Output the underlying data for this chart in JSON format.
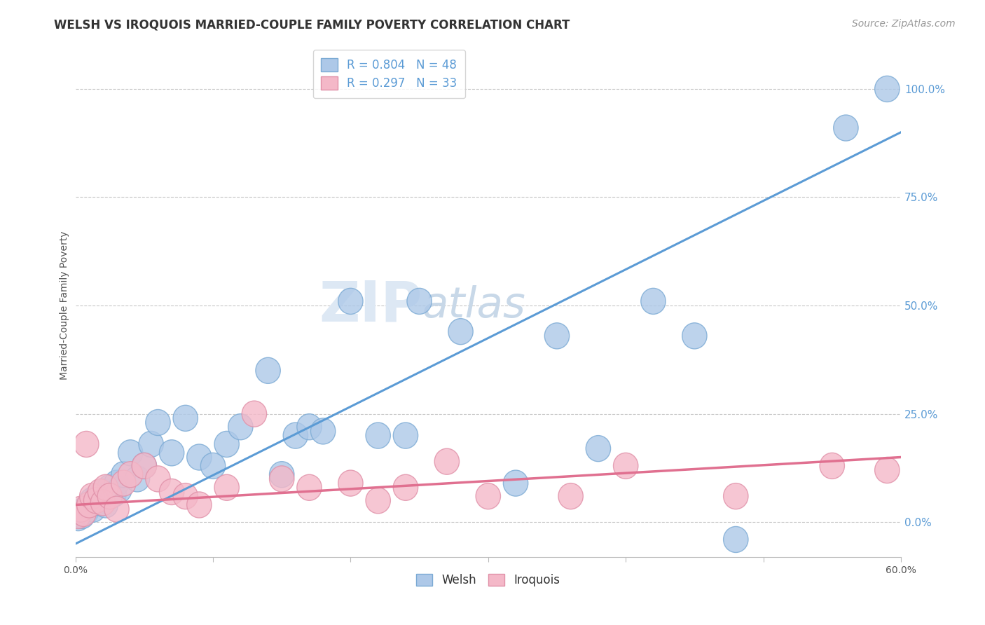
{
  "title": "WELSH VS IROQUOIS MARRIED-COUPLE FAMILY POVERTY CORRELATION CHART",
  "source": "Source: ZipAtlas.com",
  "ylabel": "Married-Couple Family Poverty",
  "ytick_values": [
    0.0,
    25.0,
    50.0,
    75.0,
    100.0
  ],
  "xlim": [
    0.0,
    60.0
  ],
  "ylim": [
    -8.0,
    108.0
  ],
  "welsh_R": 0.804,
  "welsh_N": 48,
  "iroquois_R": 0.297,
  "iroquois_N": 33,
  "welsh_color": "#adc8e8",
  "welsh_edge_color": "#7baad4",
  "welsh_line_color": "#5b9bd5",
  "iroquois_color": "#f4b8c8",
  "iroquois_edge_color": "#e090a8",
  "iroquois_line_color": "#e07090",
  "watermark_color": "#dde8f4",
  "background_color": "#ffffff",
  "grid_color": "#c8c8c8",
  "title_fontsize": 12,
  "source_fontsize": 10,
  "axis_label_fontsize": 10,
  "legend_fontsize": 12,
  "welsh_scatter_x": [
    0.2,
    0.3,
    0.5,
    0.7,
    0.8,
    1.0,
    1.0,
    1.2,
    1.3,
    1.5,
    1.6,
    1.8,
    2.0,
    2.2,
    2.5,
    2.8,
    3.0,
    3.2,
    3.5,
    4.0,
    4.5,
    5.0,
    5.5,
    6.0,
    7.0,
    8.0,
    9.0,
    10.0,
    11.0,
    12.0,
    14.0,
    15.0,
    16.0,
    17.0,
    18.0,
    20.0,
    22.0,
    24.0,
    25.0,
    28.0,
    32.0,
    35.0,
    38.0,
    42.0,
    45.0,
    48.0,
    56.0,
    59.0
  ],
  "welsh_scatter_y": [
    1.0,
    2.0,
    1.5,
    3.0,
    2.5,
    4.0,
    3.5,
    5.0,
    3.0,
    4.5,
    6.0,
    5.5,
    7.0,
    4.0,
    8.0,
    6.5,
    9.0,
    7.5,
    11.0,
    16.0,
    10.0,
    13.0,
    18.0,
    23.0,
    16.0,
    24.0,
    15.0,
    13.0,
    18.0,
    22.0,
    35.0,
    11.0,
    20.0,
    22.0,
    21.0,
    51.0,
    20.0,
    20.0,
    51.0,
    44.0,
    9.0,
    43.0,
    17.0,
    51.0,
    43.0,
    -4.0,
    91.0,
    100.0
  ],
  "iroquois_scatter_x": [
    0.2,
    0.4,
    0.6,
    0.8,
    1.0,
    1.2,
    1.5,
    1.8,
    2.0,
    2.2,
    2.5,
    3.0,
    3.5,
    4.0,
    5.0,
    6.0,
    7.0,
    8.0,
    9.0,
    11.0,
    13.0,
    15.0,
    17.0,
    20.0,
    22.0,
    24.0,
    27.0,
    30.0,
    36.0,
    40.0,
    48.0,
    55.0,
    59.0
  ],
  "iroquois_scatter_y": [
    1.5,
    3.0,
    2.0,
    18.0,
    4.0,
    6.0,
    5.0,
    7.0,
    4.5,
    8.0,
    6.0,
    3.0,
    9.0,
    11.0,
    13.0,
    10.0,
    7.0,
    6.0,
    4.0,
    8.0,
    25.0,
    10.0,
    8.0,
    9.0,
    5.0,
    8.0,
    14.0,
    6.0,
    6.0,
    13.0,
    6.0,
    13.0,
    12.0
  ]
}
